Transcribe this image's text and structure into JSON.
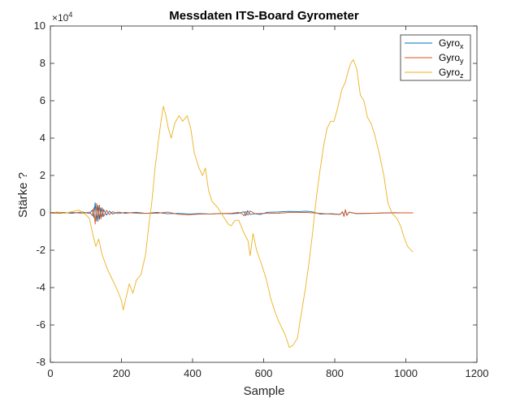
{
  "chart_data": {
    "type": "line",
    "title": "Messdaten ITS-Board Gyrometer",
    "xlabel": "Sample",
    "ylabel": "Stärke ?",
    "xlim": [
      0,
      1200
    ],
    "ylim": [
      -80000,
      100000
    ],
    "xticks": [
      0,
      200,
      400,
      600,
      800,
      1000,
      1200
    ],
    "xtick_labels": [
      "0",
      "200",
      "400",
      "600",
      "800",
      "1000",
      "1200"
    ],
    "yticks": [
      -80000,
      -60000,
      -40000,
      -20000,
      0,
      20000,
      40000,
      60000,
      80000,
      100000
    ],
    "ytick_labels": [
      "-8",
      "-6",
      "-4",
      "-2",
      "0",
      "2",
      "4",
      "6",
      "8",
      "10"
    ],
    "y_exponent": {
      "base": "×10",
      "power": "4"
    },
    "grid": false,
    "legend_position": "top-right",
    "series": [
      {
        "name": "Gyro",
        "subscript": "x",
        "color": "#0072BD",
        "points": [
          [
            0,
            0
          ],
          [
            30,
            300
          ],
          [
            60,
            -200
          ],
          [
            90,
            500
          ],
          [
            110,
            -300
          ],
          [
            118,
            1500
          ],
          [
            122,
            -2500
          ],
          [
            126,
            5500
          ],
          [
            130,
            -4500
          ],
          [
            134,
            4000
          ],
          [
            138,
            -3500
          ],
          [
            142,
            2800
          ],
          [
            146,
            -2200
          ],
          [
            150,
            1800
          ],
          [
            158,
            -1200
          ],
          [
            166,
            900
          ],
          [
            175,
            -600
          ],
          [
            190,
            400
          ],
          [
            210,
            -200
          ],
          [
            240,
            300
          ],
          [
            270,
            -300
          ],
          [
            300,
            200
          ],
          [
            330,
            -500
          ],
          [
            360,
            -300
          ],
          [
            390,
            -600
          ],
          [
            420,
            -400
          ],
          [
            450,
            -600
          ],
          [
            480,
            -300
          ],
          [
            510,
            -500
          ],
          [
            530,
            -200
          ],
          [
            545,
            600
          ],
          [
            550,
            -1500
          ],
          [
            555,
            1200
          ],
          [
            562,
            -900
          ],
          [
            575,
            -500
          ],
          [
            590,
            -900
          ],
          [
            610,
            300
          ],
          [
            640,
            500
          ],
          [
            670,
            800
          ],
          [
            700,
            700
          ],
          [
            720,
            900
          ],
          [
            740,
            400
          ],
          [
            760,
            -700
          ],
          [
            790,
            -500
          ],
          [
            815,
            -800
          ],
          [
            822,
            600
          ],
          [
            826,
            -1800
          ],
          [
            830,
            1500
          ],
          [
            834,
            -1200
          ],
          [
            840,
            300
          ],
          [
            860,
            -400
          ],
          [
            900,
            -300
          ],
          [
            930,
            -100
          ],
          [
            960,
            100
          ],
          [
            990,
            0
          ],
          [
            1020,
            0
          ]
        ]
      },
      {
        "name": "Gyro",
        "subscript": "y",
        "color": "#D95319",
        "points": [
          [
            0,
            0
          ],
          [
            30,
            -200
          ],
          [
            60,
            300
          ],
          [
            90,
            -200
          ],
          [
            110,
            400
          ],
          [
            118,
            -1500
          ],
          [
            122,
            2800
          ],
          [
            126,
            -6000
          ],
          [
            130,
            5000
          ],
          [
            134,
            -4500
          ],
          [
            138,
            4200
          ],
          [
            142,
            -3300
          ],
          [
            146,
            2600
          ],
          [
            150,
            -2000
          ],
          [
            158,
            1400
          ],
          [
            166,
            -900
          ],
          [
            175,
            600
          ],
          [
            190,
            -400
          ],
          [
            210,
            200
          ],
          [
            250,
            -300
          ],
          [
            300,
            -200
          ],
          [
            330,
            400
          ],
          [
            360,
            -800
          ],
          [
            390,
            -1000
          ],
          [
            420,
            -700
          ],
          [
            450,
            -600
          ],
          [
            480,
            -400
          ],
          [
            510,
            -200
          ],
          [
            530,
            200
          ],
          [
            540,
            -600
          ],
          [
            545,
            -1600
          ],
          [
            550,
            800
          ],
          [
            556,
            -1200
          ],
          [
            562,
            1000
          ],
          [
            575,
            -400
          ],
          [
            600,
            -300
          ],
          [
            640,
            -200
          ],
          [
            680,
            300
          ],
          [
            720,
            200
          ],
          [
            760,
            -300
          ],
          [
            790,
            -700
          ],
          [
            815,
            -900
          ],
          [
            822,
            500
          ],
          [
            826,
            -2000
          ],
          [
            830,
            1800
          ],
          [
            834,
            -1500
          ],
          [
            840,
            400
          ],
          [
            860,
            -300
          ],
          [
            900,
            -200
          ],
          [
            950,
            -100
          ],
          [
            990,
            0
          ],
          [
            1020,
            0
          ]
        ]
      },
      {
        "name": "Gyro",
        "subscript": "z",
        "color": "#EDB120",
        "points": [
          [
            0,
            0
          ],
          [
            20,
            500
          ],
          [
            40,
            -300
          ],
          [
            60,
            600
          ],
          [
            80,
            1500
          ],
          [
            100,
            -1000
          ],
          [
            110,
            -3000
          ],
          [
            120,
            -12000
          ],
          [
            128,
            -18000
          ],
          [
            136,
            -14000
          ],
          [
            145,
            -22000
          ],
          [
            160,
            -30000
          ],
          [
            175,
            -36000
          ],
          [
            190,
            -42000
          ],
          [
            200,
            -47000
          ],
          [
            205,
            -52000
          ],
          [
            212,
            -46000
          ],
          [
            222,
            -38000
          ],
          [
            232,
            -43000
          ],
          [
            242,
            -36000
          ],
          [
            255,
            -33000
          ],
          [
            268,
            -22000
          ],
          [
            278,
            -5000
          ],
          [
            285,
            5000
          ],
          [
            295,
            25000
          ],
          [
            305,
            40000
          ],
          [
            312,
            50000
          ],
          [
            318,
            57000
          ],
          [
            325,
            52000
          ],
          [
            332,
            45000
          ],
          [
            340,
            40000
          ],
          [
            350,
            48000
          ],
          [
            362,
            52000
          ],
          [
            372,
            49000
          ],
          [
            385,
            52000
          ],
          [
            395,
            45000
          ],
          [
            405,
            32000
          ],
          [
            418,
            24000
          ],
          [
            428,
            20000
          ],
          [
            436,
            24000
          ],
          [
            445,
            12000
          ],
          [
            455,
            6000
          ],
          [
            470,
            3000
          ],
          [
            490,
            -3000
          ],
          [
            500,
            -6000
          ],
          [
            508,
            -7000
          ],
          [
            520,
            -4000
          ],
          [
            530,
            -4000
          ],
          [
            545,
            -11000
          ],
          [
            556,
            -15000
          ],
          [
            562,
            -23000
          ],
          [
            570,
            -11000
          ],
          [
            580,
            -20000
          ],
          [
            595,
            -28000
          ],
          [
            608,
            -36000
          ],
          [
            620,
            -46000
          ],
          [
            632,
            -53000
          ],
          [
            642,
            -58000
          ],
          [
            652,
            -62000
          ],
          [
            662,
            -66000
          ],
          [
            672,
            -72000
          ],
          [
            682,
            -71000
          ],
          [
            695,
            -67000
          ],
          [
            705,
            -55000
          ],
          [
            718,
            -40000
          ],
          [
            728,
            -26000
          ],
          [
            738,
            -10000
          ],
          [
            748,
            8000
          ],
          [
            758,
            22000
          ],
          [
            768,
            35000
          ],
          [
            778,
            45000
          ],
          [
            788,
            49000
          ],
          [
            798,
            49000
          ],
          [
            808,
            56000
          ],
          [
            820,
            66000
          ],
          [
            830,
            70000
          ],
          [
            838,
            76000
          ],
          [
            845,
            80000
          ],
          [
            852,
            82000
          ],
          [
            862,
            77000
          ],
          [
            872,
            63000
          ],
          [
            882,
            60000
          ],
          [
            892,
            51000
          ],
          [
            902,
            48000
          ],
          [
            912,
            42000
          ],
          [
            925,
            32000
          ],
          [
            938,
            20000
          ],
          [
            950,
            5000
          ],
          [
            962,
            -500
          ],
          [
            975,
            -3000
          ],
          [
            985,
            -7000
          ],
          [
            995,
            -13000
          ],
          [
            1005,
            -18000
          ],
          [
            1015,
            -20000
          ],
          [
            1020,
            -21000
          ]
        ]
      }
    ]
  }
}
